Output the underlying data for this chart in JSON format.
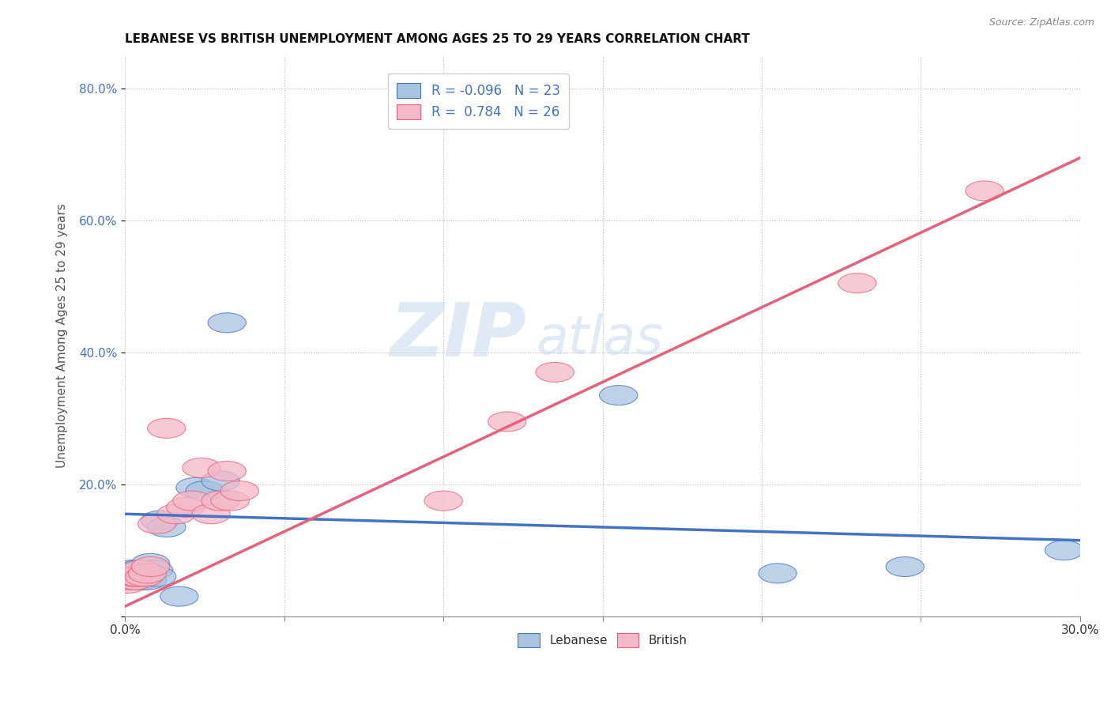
{
  "title": "LEBANESE VS BRITISH UNEMPLOYMENT AMONG AGES 25 TO 29 YEARS CORRELATION CHART",
  "source": "Source: ZipAtlas.com",
  "ylabel": "Unemployment Among Ages 25 to 29 years",
  "xlim": [
    0.0,
    0.3
  ],
  "ylim": [
    0.0,
    0.85
  ],
  "xticks": [
    0.0,
    0.05,
    0.1,
    0.15,
    0.2,
    0.25,
    0.3
  ],
  "xticklabels": [
    "0.0%",
    "",
    "",
    "",
    "",
    "",
    "30.0%"
  ],
  "yticks": [
    0.0,
    0.2,
    0.4,
    0.6,
    0.8
  ],
  "yticklabels": [
    "",
    "20.0%",
    "40.0%",
    "60.0%",
    "80.0%"
  ],
  "watermark_zip": "ZIP",
  "watermark_atlas": "atlas",
  "color_lebanese": "#a8c4e0",
  "color_british": "#f4b8c8",
  "color_line_lebanese": "#4472c4",
  "color_line_british": "#e8607a",
  "background_color": "#ffffff",
  "lebanese_x": [
    0.001,
    0.002,
    0.002,
    0.003,
    0.003,
    0.004,
    0.004,
    0.005,
    0.005,
    0.006,
    0.007,
    0.008,
    0.009,
    0.01,
    0.011,
    0.013,
    0.017,
    0.022,
    0.025,
    0.03,
    0.032,
    0.155,
    0.205,
    0.245,
    0.295
  ],
  "lebanese_y": [
    0.06,
    0.055,
    0.07,
    0.055,
    0.065,
    0.055,
    0.07,
    0.055,
    0.06,
    0.06,
    0.055,
    0.08,
    0.07,
    0.06,
    0.145,
    0.135,
    0.03,
    0.195,
    0.19,
    0.205,
    0.445,
    0.335,
    0.065,
    0.075,
    0.1
  ],
  "british_x": [
    0.001,
    0.002,
    0.002,
    0.003,
    0.003,
    0.004,
    0.005,
    0.006,
    0.007,
    0.008,
    0.01,
    0.013,
    0.016,
    0.019,
    0.021,
    0.024,
    0.027,
    0.03,
    0.032,
    0.033,
    0.036,
    0.1,
    0.12,
    0.135,
    0.23,
    0.27
  ],
  "british_y": [
    0.05,
    0.055,
    0.06,
    0.055,
    0.06,
    0.06,
    0.07,
    0.06,
    0.065,
    0.075,
    0.14,
    0.285,
    0.155,
    0.165,
    0.175,
    0.225,
    0.155,
    0.175,
    0.22,
    0.175,
    0.19,
    0.175,
    0.295,
    0.37,
    0.505,
    0.645
  ],
  "leb_line_x0": 0.0,
  "leb_line_y0": 0.155,
  "leb_line_x1": 0.3,
  "leb_line_y1": 0.115,
  "brit_line_x0": 0.0,
  "brit_line_y0": 0.015,
  "brit_line_x1": 0.3,
  "brit_line_y1": 0.695
}
